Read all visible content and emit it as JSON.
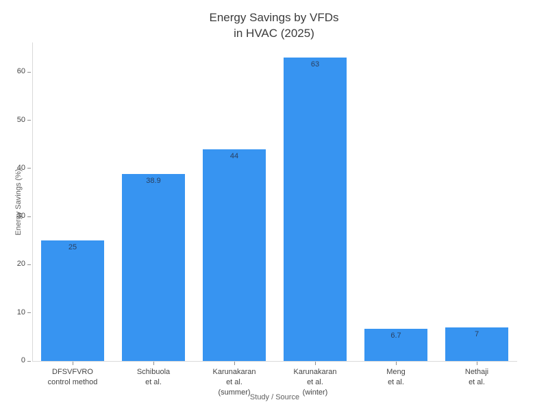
{
  "chart_data": {
    "type": "bar",
    "title": "Energy Savings by VFDs in HVAC (2025)",
    "title_lines": [
      "Energy Savings by VFDs",
      "in HVAC (2025)"
    ],
    "xlabel": "Study / Source",
    "ylabel": "Energy Savings (%)",
    "categories": [
      [
        "DFSVFVRO",
        "control method"
      ],
      [
        "Schibuola",
        "et al."
      ],
      [
        "Karunakaran",
        "et al.",
        "(summer)"
      ],
      [
        "Karunakaran",
        "et al.",
        "(winter)"
      ],
      [
        "Meng",
        "et al."
      ],
      [
        "Nethaji",
        "et al."
      ]
    ],
    "values": [
      25,
      38.9,
      44,
      63,
      6.7,
      7
    ],
    "value_labels": [
      "25",
      "38.9",
      "44",
      "63",
      "6.7",
      "7"
    ],
    "yticks": [
      0,
      10,
      20,
      30,
      40,
      50,
      60
    ],
    "ylim": [
      0,
      66.15
    ],
    "grid": false,
    "legend_position": null,
    "bar_color": "#3794f1",
    "value_label_color": "#2a3f5f",
    "tick_label_color": "#444444",
    "axis_title_color": "#5f5f5f",
    "axis_line_color": "#d9d9d9",
    "title_color": "#3b3b3b",
    "background": "#ffffff"
  }
}
